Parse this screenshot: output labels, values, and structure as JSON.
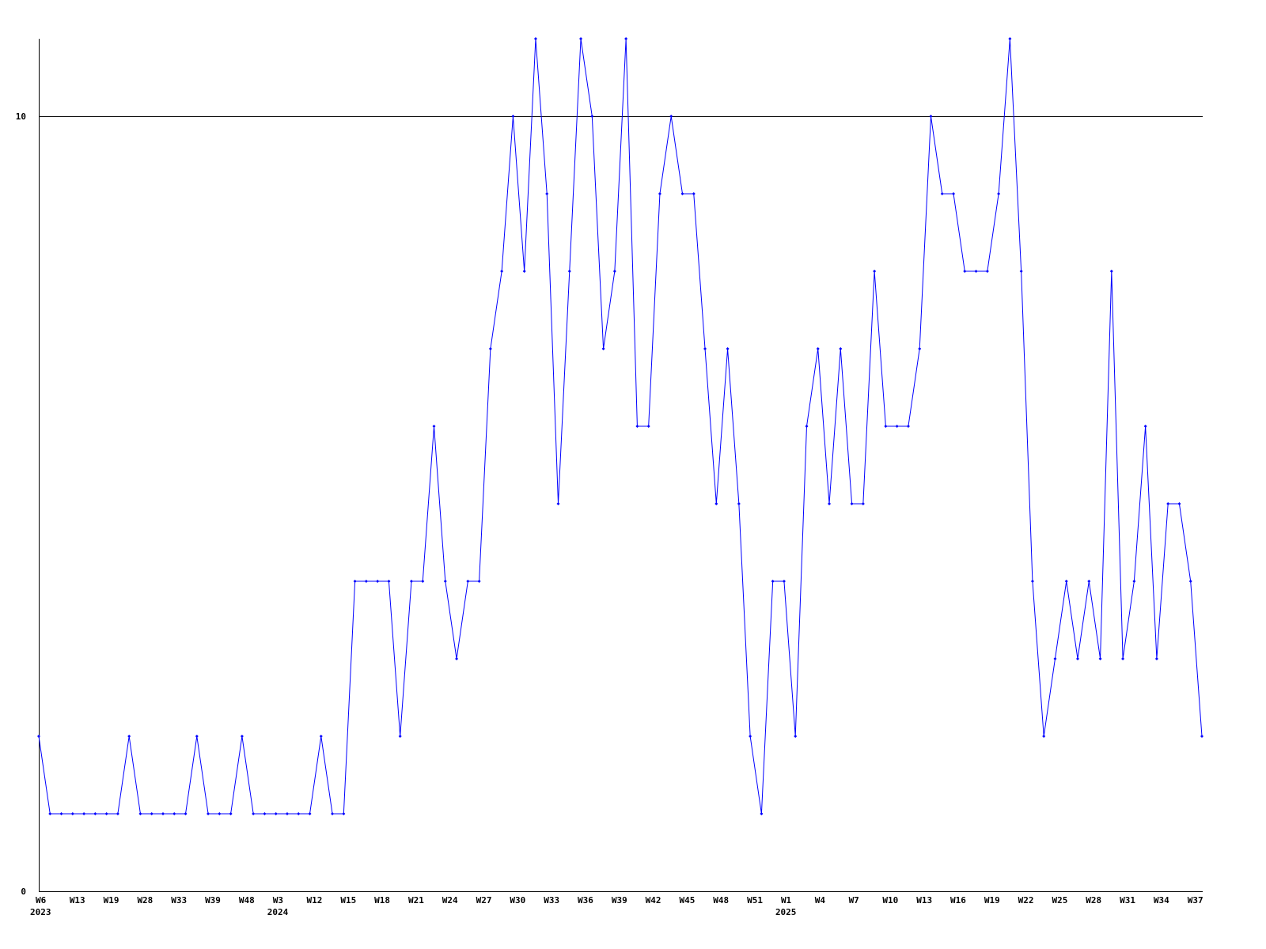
{
  "chart_data": {
    "type": "line",
    "title": "",
    "xlabel": "",
    "ylabel": "",
    "ylim": [
      0,
      11
    ],
    "y_ticks": [
      0,
      10
    ],
    "reference_line": 10,
    "grid": false,
    "line_color": "#0000ff",
    "axis_color": "#000000",
    "series": [
      {
        "values": [
          2,
          1,
          1,
          1,
          1,
          1,
          1,
          1,
          2,
          1,
          1,
          1,
          1,
          1,
          2,
          1,
          1,
          1,
          2,
          1,
          1,
          1,
          1,
          1,
          1,
          2,
          1,
          1,
          4,
          4,
          4,
          4,
          2,
          4,
          4,
          6,
          4,
          3,
          4,
          4,
          7,
          8,
          10,
          8,
          11,
          9,
          5,
          8,
          11,
          10,
          7,
          8,
          11,
          6,
          6,
          9,
          10,
          9,
          9,
          7,
          5,
          7,
          5,
          2,
          1,
          4,
          4,
          2,
          6,
          7,
          5,
          7,
          5,
          5,
          8,
          6,
          6,
          6,
          7,
          10,
          9,
          9,
          8,
          8,
          8,
          9,
          11,
          8,
          4,
          2,
          3,
          4,
          3,
          4,
          3,
          8,
          3,
          4,
          6,
          3,
          5,
          5,
          4,
          2
        ]
      }
    ],
    "x_ticks": [
      {
        "index": 0,
        "label": "W6"
      },
      {
        "index": 3,
        "label": "W13"
      },
      {
        "index": 6,
        "label": "W19"
      },
      {
        "index": 9,
        "label": "W28"
      },
      {
        "index": 12,
        "label": "W33"
      },
      {
        "index": 15,
        "label": "W39"
      },
      {
        "index": 18,
        "label": "W48"
      },
      {
        "index": 21,
        "label": "W3"
      },
      {
        "index": 24,
        "label": "W12"
      },
      {
        "index": 27,
        "label": "W15"
      },
      {
        "index": 30,
        "label": "W18"
      },
      {
        "index": 33,
        "label": "W21"
      },
      {
        "index": 36,
        "label": "W24"
      },
      {
        "index": 39,
        "label": "W27"
      },
      {
        "index": 42,
        "label": "W30"
      },
      {
        "index": 45,
        "label": "W33"
      },
      {
        "index": 48,
        "label": "W36"
      },
      {
        "index": 51,
        "label": "W39"
      },
      {
        "index": 54,
        "label": "W42"
      },
      {
        "index": 57,
        "label": "W45"
      },
      {
        "index": 60,
        "label": "W48"
      },
      {
        "index": 63,
        "label": "W51"
      },
      {
        "index": 66,
        "label": "W1"
      },
      {
        "index": 69,
        "label": "W4"
      },
      {
        "index": 72,
        "label": "W7"
      },
      {
        "index": 75,
        "label": "W10"
      },
      {
        "index": 78,
        "label": "W13"
      },
      {
        "index": 81,
        "label": "W16"
      },
      {
        "index": 84,
        "label": "W19"
      },
      {
        "index": 87,
        "label": "W22"
      },
      {
        "index": 90,
        "label": "W25"
      },
      {
        "index": 93,
        "label": "W28"
      },
      {
        "index": 96,
        "label": "W31"
      },
      {
        "index": 99,
        "label": "W34"
      },
      {
        "index": 102,
        "label": "W37"
      }
    ],
    "year_labels": [
      {
        "index": 0,
        "label": "2023"
      },
      {
        "index": 21,
        "label": "2024"
      },
      {
        "index": 66,
        "label": "2025"
      }
    ]
  }
}
